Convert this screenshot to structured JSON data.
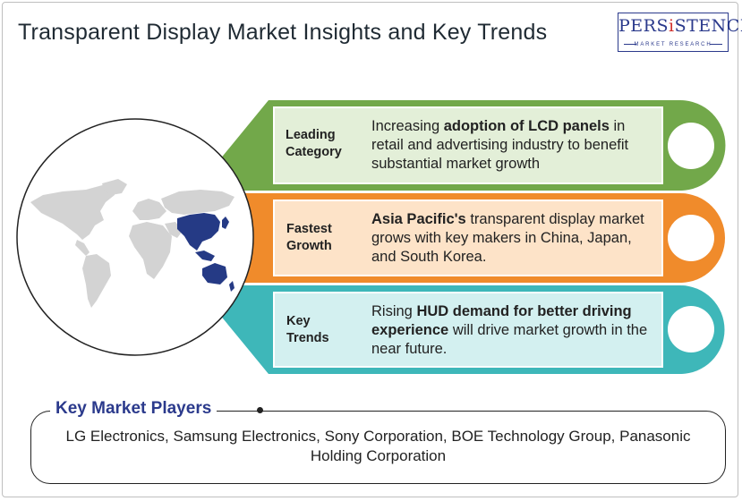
{
  "header": {
    "title": "Transparent Display Market Insights and Key Trends",
    "logo_main_before": "PERS",
    "logo_main_accent": "i",
    "logo_main_after": "STENCE",
    "logo_sub": "MARKET RESEARCH"
  },
  "colors": {
    "green": "#72a84a",
    "green_fill": "#e3efd8",
    "orange": "#f08b2b",
    "orange_fill": "#fde3c8",
    "teal": "#3eb7b9",
    "teal_fill": "#d3f0f0",
    "highlight_region": "#253a85",
    "map_land": "#d3d3d3",
    "brand": "#2b3a8c"
  },
  "rows": [
    {
      "label_line1": "Leading",
      "label_line2": "Category",
      "text_pre": "Increasing ",
      "text_bold": "adoption of LCD panels",
      "text_post": " in retail and advertising industry to benefit substantial market growth"
    },
    {
      "label_line1": "Fastest",
      "label_line2": "Growth",
      "text_pre": "",
      "text_bold": "Asia Pacific's",
      "text_post": " transparent display market grows with key makers in China, Japan, and South Korea."
    },
    {
      "label_line1": "Key",
      "label_line2": "Trends",
      "text_pre": "Rising ",
      "text_bold": "HUD demand for better driving experience",
      "text_post": " will drive market growth in the near future."
    }
  ],
  "players": {
    "title": "Key Market Players",
    "text": "LG Electronics, Samsung Electronics, Sony Corporation, BOE Technology Group, Panasonic Holding Corporation"
  }
}
